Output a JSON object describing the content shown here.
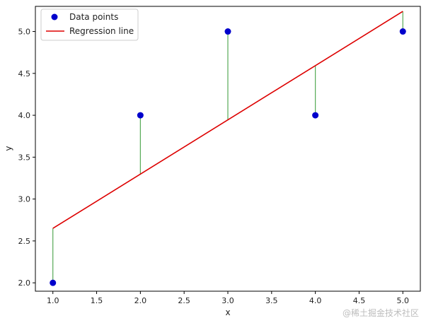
{
  "chart_data": {
    "type": "scatter",
    "title": "",
    "xlabel": "x",
    "ylabel": "y",
    "xlim": [
      0.8,
      5.2
    ],
    "ylim": [
      1.9,
      5.3
    ],
    "xticks": [
      "1.0",
      "1.5",
      "2.0",
      "2.5",
      "3.0",
      "3.5",
      "4.0",
      "4.5",
      "5.0"
    ],
    "yticks": [
      "2.0",
      "2.5",
      "3.0",
      "3.5",
      "4.0",
      "4.5",
      "5.0"
    ],
    "grid": false,
    "legend_position": "top-left",
    "series": [
      {
        "name": "Data points",
        "kind": "scatter",
        "color": "#0000cc",
        "x": [
          1,
          2,
          3,
          4,
          5
        ],
        "y": [
          2.0,
          4.0,
          5.0,
          4.0,
          5.0
        ]
      },
      {
        "name": "Regression line",
        "kind": "line",
        "color": "#dd0000",
        "x": [
          1,
          5
        ],
        "y": [
          2.65,
          5.24
        ]
      }
    ],
    "residuals": {
      "color": "#55aa55",
      "x": [
        1,
        2,
        3,
        4,
        5
      ],
      "y_from": [
        2.0,
        4.0,
        5.0,
        4.0,
        5.0
      ],
      "y_to": [
        2.65,
        3.29,
        3.94,
        4.59,
        5.24
      ]
    }
  },
  "watermark": "@稀土掘金技术社区"
}
